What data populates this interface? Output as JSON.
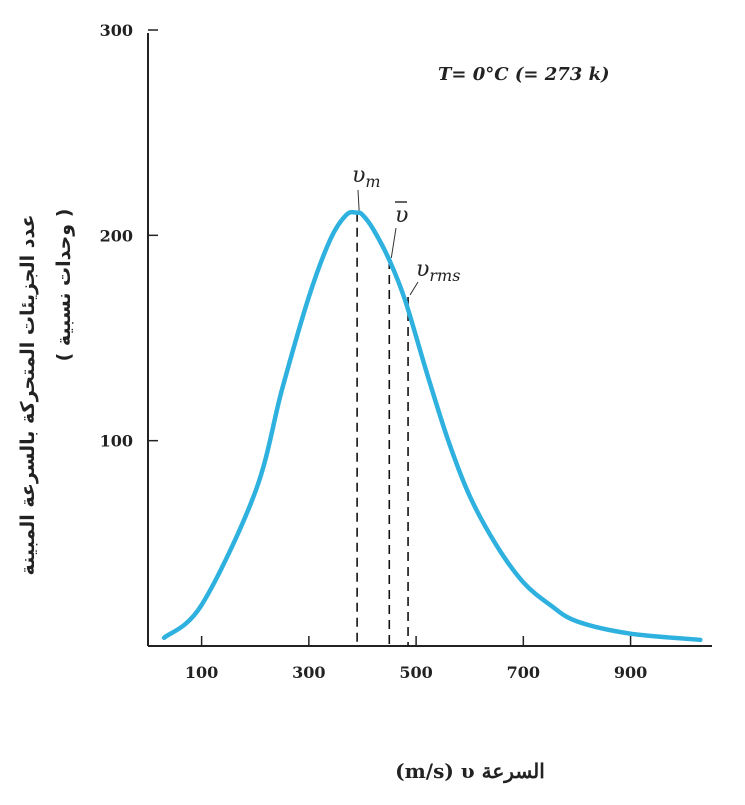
{
  "chart_data": {
    "type": "line",
    "annotation": "T= 0°C (= 273 k)",
    "xlabel": "(m/s)  υ السرعة",
    "ylabel_line1": "عدد الجزيئات المتحركة بالسرعة المبينة",
    "ylabel_line2": "( وحدات نسبية )",
    "x_ticks": [
      100,
      300,
      500,
      700,
      900
    ],
    "y_ticks": [
      100,
      200,
      300
    ],
    "x_range": [
      0,
      1000
    ],
    "y_range": [
      0,
      300
    ],
    "grid": false,
    "series": [
      {
        "color": "#2eb1df",
        "x": [
          30,
          100,
          200,
          250,
          300,
          340,
          370,
          390,
          400,
          420,
          450,
          480,
          520,
          560,
          600,
          650,
          700,
          750,
          800,
          900,
          1030
        ],
        "y": [
          4,
          20,
          75,
          125,
          170,
          198,
          210,
          211,
          210,
          203,
          188,
          168,
          133,
          100,
          73,
          49,
          31,
          20,
          12,
          6,
          3
        ]
      }
    ],
    "markers": [
      {
        "label": "υm",
        "x": 390,
        "y": 211
      },
      {
        "label": "ῡ",
        "x": 450,
        "y": 188
      },
      {
        "label": "υrms",
        "x": 485,
        "y": 170
      }
    ]
  }
}
